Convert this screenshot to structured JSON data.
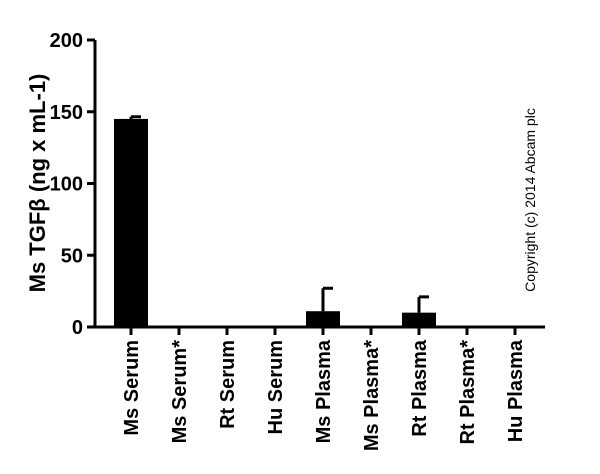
{
  "chart_data": {
    "type": "bar",
    "title": "",
    "xlabel": "",
    "ylabel": "Ms TGFβ (ng x mL-1)",
    "ylim": [
      0,
      200
    ],
    "yticks": [
      0,
      50,
      100,
      150,
      200
    ],
    "categories": [
      "Ms Serum",
      "Ms Serum*",
      "Rt Serum",
      "Hu Serum",
      "Ms Plasma",
      "Ms Plasma*",
      "Rt Plasma",
      "Rt Plasma*",
      "Hu Plasma"
    ],
    "values": [
      145,
      0,
      0,
      0,
      11,
      0,
      10,
      0,
      0
    ],
    "error_upper": [
      1.5,
      0,
      0,
      0,
      16,
      0,
      11,
      0,
      0
    ],
    "bar_color": "#000000",
    "grid": false,
    "legend": "none"
  },
  "annotation": "Copyright (c) 2014 Abcam plc"
}
